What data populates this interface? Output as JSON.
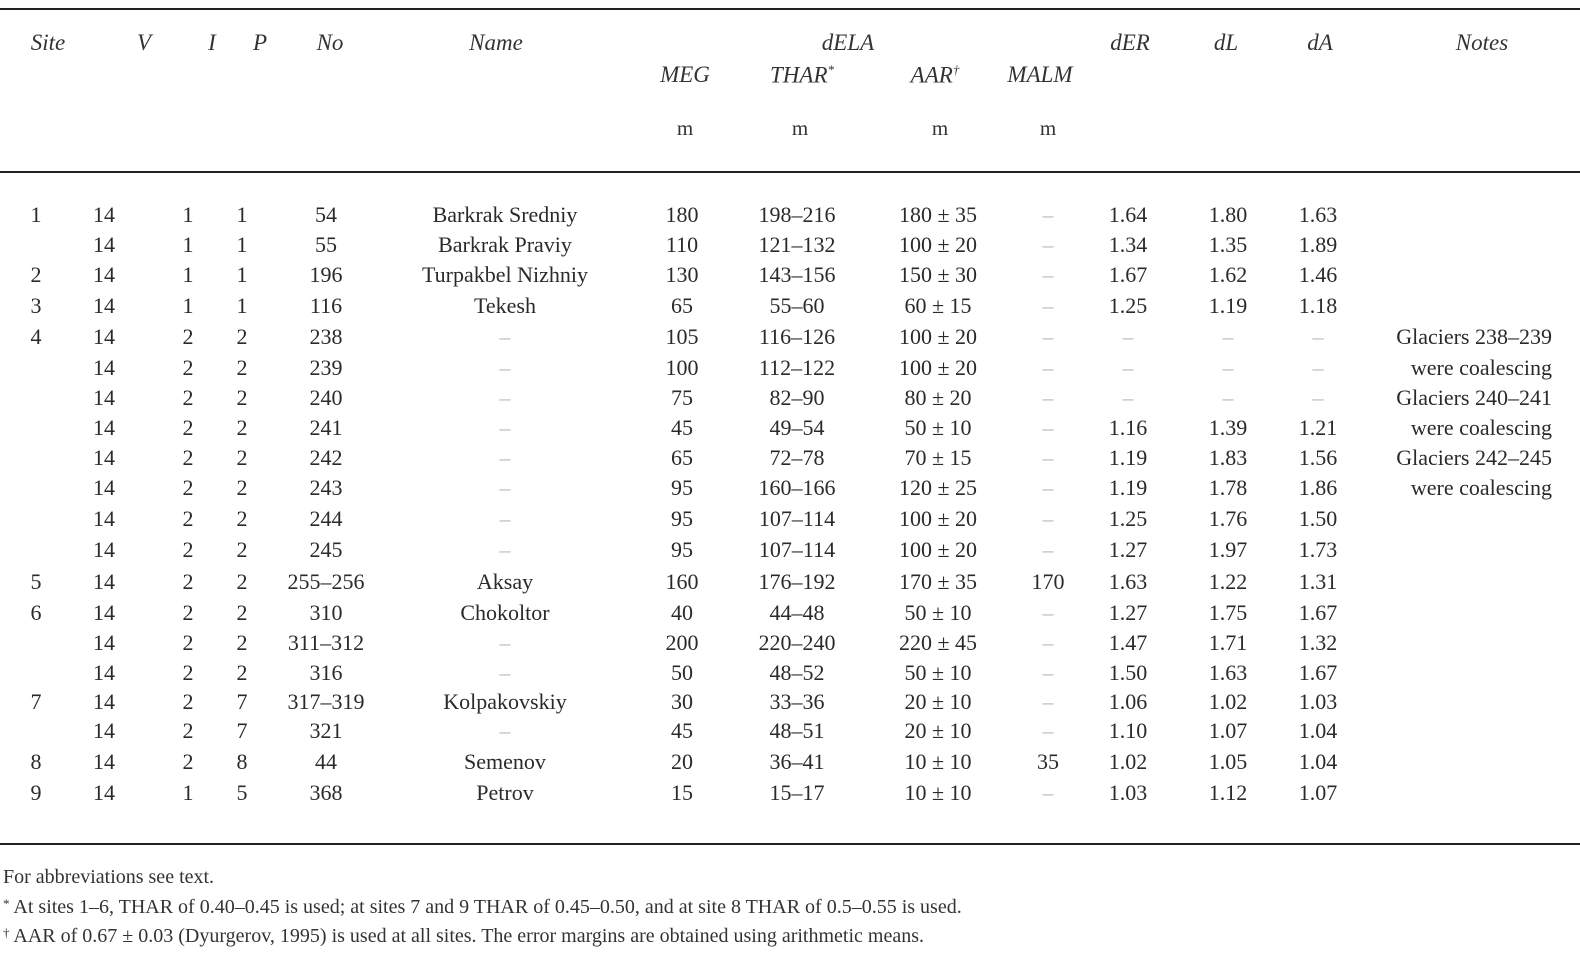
{
  "headers": {
    "site": "Site",
    "v": "V",
    "i": "I",
    "p": "P",
    "no": "No",
    "name": "Name",
    "dela": "dELA",
    "meg": "MEG",
    "thar": "THAR",
    "thar_mark": "*",
    "aar": "AAR",
    "aar_mark": "†",
    "malm": "MALM",
    "der": "dER",
    "dl": "dL",
    "da": "dA",
    "notes": "Notes",
    "unit_meg": "m",
    "unit_thar": "m",
    "unit_aar": "m",
    "unit_malm": "m"
  },
  "rows": [
    {
      "site": "1",
      "v": "14",
      "i": "1",
      "p": "1",
      "no": "54",
      "name": "Barkrak Sredniy",
      "meg": "180",
      "thar": "198–216",
      "aar": "180 ± 35",
      "malm": "–",
      "der": "1.64",
      "dl": "1.80",
      "da": "1.63",
      "note": ""
    },
    {
      "site": "",
      "v": "14",
      "i": "1",
      "p": "1",
      "no": "55",
      "name": "Barkrak Praviy",
      "meg": "110",
      "thar": "121–132",
      "aar": "100 ± 20",
      "malm": "–",
      "der": "1.34",
      "dl": "1.35",
      "da": "1.89",
      "note": ""
    },
    {
      "site": "2",
      "v": "14",
      "i": "1",
      "p": "1",
      "no": "196",
      "name": "Turpakbel Nizhniy",
      "meg": "130",
      "thar": "143–156",
      "aar": "150 ± 30",
      "malm": "–",
      "der": "1.67",
      "dl": "1.62",
      "da": "1.46",
      "note": ""
    },
    {
      "site": "3",
      "v": "14",
      "i": "1",
      "p": "1",
      "no": "116",
      "name": "Tekesh",
      "meg": "65",
      "thar": "55–60",
      "aar": "60 ± 15",
      "malm": "–",
      "der": "1.25",
      "dl": "1.19",
      "da": "1.18",
      "note": ""
    },
    {
      "site": "4",
      "v": "14",
      "i": "2",
      "p": "2",
      "no": "238",
      "name": "–",
      "meg": "105",
      "thar": "116–126",
      "aar": "100 ± 20",
      "malm": "–",
      "der": "–",
      "dl": "–",
      "da": "–",
      "note": "Glaciers 238–239"
    },
    {
      "site": "",
      "v": "14",
      "i": "2",
      "p": "2",
      "no": "239",
      "name": "–",
      "meg": "100",
      "thar": "112–122",
      "aar": "100 ± 20",
      "malm": "–",
      "der": "–",
      "dl": "–",
      "da": "–",
      "note": "were coalescing"
    },
    {
      "site": "",
      "v": "14",
      "i": "2",
      "p": "2",
      "no": "240",
      "name": "–",
      "meg": "75",
      "thar": "82–90",
      "aar": "80 ± 20",
      "malm": "–",
      "der": "–",
      "dl": "–",
      "da": "–",
      "note": "Glaciers 240–241"
    },
    {
      "site": "",
      "v": "14",
      "i": "2",
      "p": "2",
      "no": "241",
      "name": "–",
      "meg": "45",
      "thar": "49–54",
      "aar": "50 ± 10",
      "malm": "–",
      "der": "1.16",
      "dl": "1.39",
      "da": "1.21",
      "note": "were coalescing"
    },
    {
      "site": "",
      "v": "14",
      "i": "2",
      "p": "2",
      "no": "242",
      "name": "–",
      "meg": "65",
      "thar": "72–78",
      "aar": "70 ± 15",
      "malm": "–",
      "der": "1.19",
      "dl": "1.83",
      "da": "1.56",
      "note": "Glaciers 242–245"
    },
    {
      "site": "",
      "v": "14",
      "i": "2",
      "p": "2",
      "no": "243",
      "name": "–",
      "meg": "95",
      "thar": "160–166",
      "aar": "120 ± 25",
      "malm": "–",
      "der": "1.19",
      "dl": "1.78",
      "da": "1.86",
      "note": "were coalescing"
    },
    {
      "site": "",
      "v": "14",
      "i": "2",
      "p": "2",
      "no": "244",
      "name": "–",
      "meg": "95",
      "thar": "107–114",
      "aar": "100 ± 20",
      "malm": "–",
      "der": "1.25",
      "dl": "1.76",
      "da": "1.50",
      "note": ""
    },
    {
      "site": "",
      "v": "14",
      "i": "2",
      "p": "2",
      "no": "245",
      "name": "–",
      "meg": "95",
      "thar": "107–114",
      "aar": "100 ± 20",
      "malm": "–",
      "der": "1.27",
      "dl": "1.97",
      "da": "1.73",
      "note": ""
    },
    {
      "site": "5",
      "v": "14",
      "i": "2",
      "p": "2",
      "no": "255–256",
      "name": "Aksay",
      "meg": "160",
      "thar": "176–192",
      "aar": "170 ± 35",
      "malm": "170",
      "der": "1.63",
      "dl": "1.22",
      "da": "1.31",
      "note": ""
    },
    {
      "site": "6",
      "v": "14",
      "i": "2",
      "p": "2",
      "no": "310",
      "name": "Chokoltor",
      "meg": "40",
      "thar": "44–48",
      "aar": "50 ± 10",
      "malm": "–",
      "der": "1.27",
      "dl": "1.75",
      "da": "1.67",
      "note": ""
    },
    {
      "site": "",
      "v": "14",
      "i": "2",
      "p": "2",
      "no": "311–312",
      "name": "–",
      "meg": "200",
      "thar": "220–240",
      "aar": "220 ± 45",
      "malm": "–",
      "der": "1.47",
      "dl": "1.71",
      "da": "1.32",
      "note": ""
    },
    {
      "site": "",
      "v": "14",
      "i": "2",
      "p": "2",
      "no": "316",
      "name": "–",
      "meg": "50",
      "thar": "48–52",
      "aar": "50 ± 10",
      "malm": "–",
      "der": "1.50",
      "dl": "1.63",
      "da": "1.67",
      "note": ""
    },
    {
      "site": "7",
      "v": "14",
      "i": "2",
      "p": "7",
      "no": "317–319",
      "name": "Kolpakovskiy",
      "meg": "30",
      "thar": "33–36",
      "aar": "20 ± 10",
      "malm": "–",
      "der": "1.06",
      "dl": "1.02",
      "da": "1.03",
      "note": ""
    },
    {
      "site": "",
      "v": "14",
      "i": "2",
      "p": "7",
      "no": "321",
      "name": "–",
      "meg": "45",
      "thar": "48–51",
      "aar": "20 ± 10",
      "malm": "–",
      "der": "1.10",
      "dl": "1.07",
      "da": "1.04",
      "note": ""
    },
    {
      "site": "8",
      "v": "14",
      "i": "2",
      "p": "8",
      "no": "44",
      "name": "Semenov",
      "meg": "20",
      "thar": "36–41",
      "aar": "10 ± 10",
      "malm": "35",
      "der": "1.02",
      "dl": "1.05",
      "da": "1.04",
      "note": ""
    },
    {
      "site": "9",
      "v": "14",
      "i": "1",
      "p": "5",
      "no": "368",
      "name": "Petrov",
      "meg": "15",
      "thar": "15–17",
      "aar": "10 ± 10",
      "malm": "–",
      "der": "1.03",
      "dl": "1.12",
      "da": "1.07",
      "note": ""
    }
  ],
  "footnotes": {
    "abbrev": "For abbreviations see text.",
    "thar_mark": "*",
    "thar": "At sites 1–6, THAR of 0.40–0.45 is used; at sites 7 and 9 THAR of 0.45–0.50, and at site 8 THAR of 0.5–0.55 is used.",
    "aar_mark": "†",
    "aar": "AAR of 0.67 ± 0.03 (Dyurgerov, 1995) is used at all sites. The error margins are obtained using arithmetic means."
  }
}
